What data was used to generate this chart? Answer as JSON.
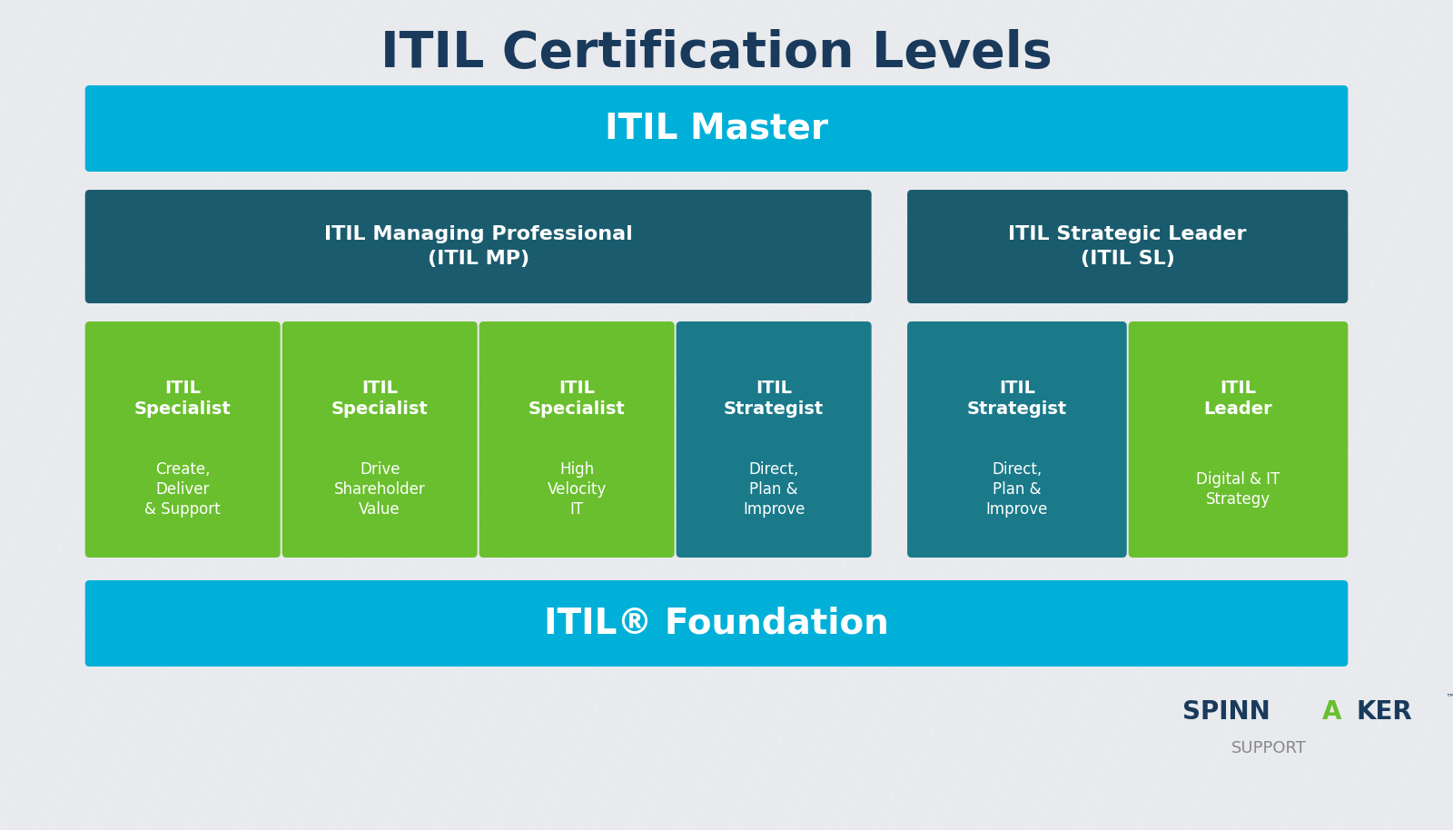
{
  "title": "ITIL Certification Levels",
  "title_color": "#1a3a5c",
  "bg_color": "#e8eaed",
  "cyan_color": "#00b0d8",
  "dark_teal_color": "#1a5c6e",
  "green_color": "#6abf2e",
  "teal_color": "#1a7a8a",
  "white_color": "#ffffff",
  "master_text": "ITIL Master",
  "mp_text": "ITIL Managing Professional\n(ITIL MP)",
  "sl_text": "ITIL Strategic Leader\n(ITIL SL)",
  "foundation_text": "ITIL® Foundation",
  "boxes": [
    {
      "title": "ITIL\nSpecialist",
      "subtitle": "Create,\nDeliver\n& Support",
      "color": "#6abf2e",
      "tcolor": "#ffffff"
    },
    {
      "title": "ITIL\nSpecialist",
      "subtitle": "Drive\nShareholder\nValue",
      "color": "#6abf2e",
      "tcolor": "#ffffff"
    },
    {
      "title": "ITIL\nSpecialist",
      "subtitle": "High\nVelocity\nIT",
      "color": "#6abf2e",
      "tcolor": "#ffffff"
    },
    {
      "title": "ITIL\nStrategist",
      "subtitle": "Direct,\nPlan &\nImprove",
      "color": "#1a7a8a",
      "tcolor": "#ffffff"
    },
    {
      "title": "ITIL\nStrategist",
      "subtitle": "Direct,\nPlan &\nImprove",
      "color": "#1a7a8a",
      "tcolor": "#ffffff"
    },
    {
      "title": "ITIL\nLeader",
      "subtitle": "Digital & IT\nStrategy",
      "color": "#6abf2e",
      "tcolor": "#ffffff"
    }
  ],
  "spinnaker_dark": "#1a3a5c",
  "spinnaker_green": "#6abf2e",
  "spinnaker_gray": "#888888"
}
